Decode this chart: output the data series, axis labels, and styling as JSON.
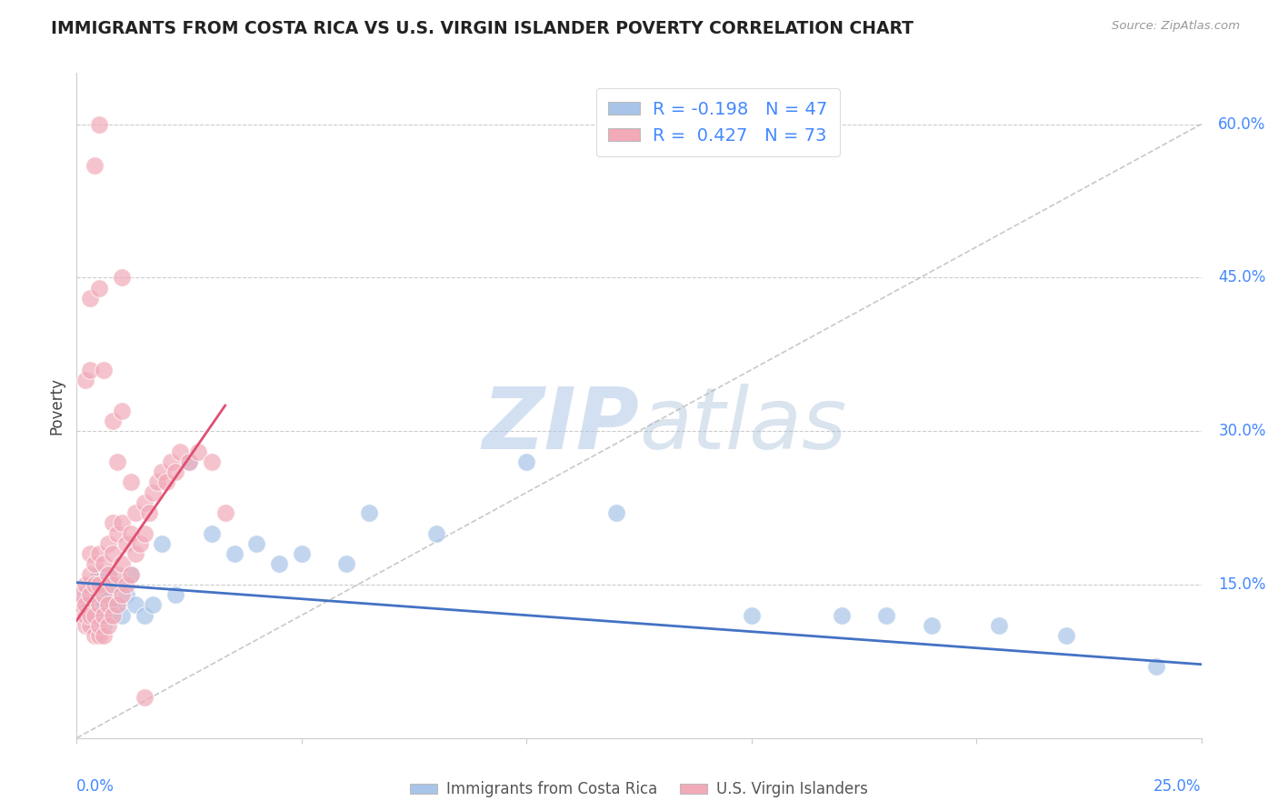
{
  "title": "IMMIGRANTS FROM COSTA RICA VS U.S. VIRGIN ISLANDER POVERTY CORRELATION CHART",
  "source": "Source: ZipAtlas.com",
  "ylabel": "Poverty",
  "legend_r1": "R = -0.198",
  "legend_n1": "N = 47",
  "legend_r2": "R =  0.427",
  "legend_n2": "N = 73",
  "watermark_zip": "ZIP",
  "watermark_atlas": "atlas",
  "blue_color": "#a8c4e8",
  "pink_color": "#f2aab8",
  "trend_blue": "#4472c4",
  "trend_pink": "#e05070",
  "xlim": [
    0.0,
    0.25
  ],
  "ylim": [
    0.0,
    0.65
  ],
  "yticks": [
    0.0,
    0.15,
    0.3,
    0.45,
    0.6
  ],
  "ytick_labels": [
    "",
    "15.0%",
    "30.0%",
    "45.0%",
    "60.0%"
  ],
  "blue_scatter_x": [
    0.001,
    0.002,
    0.002,
    0.003,
    0.003,
    0.004,
    0.004,
    0.004,
    0.005,
    0.005,
    0.005,
    0.006,
    0.006,
    0.006,
    0.007,
    0.007,
    0.007,
    0.008,
    0.008,
    0.009,
    0.01,
    0.01,
    0.011,
    0.012,
    0.013,
    0.015,
    0.017,
    0.019,
    0.022,
    0.025,
    0.03,
    0.035,
    0.04,
    0.045,
    0.05,
    0.06,
    0.065,
    0.08,
    0.1,
    0.12,
    0.15,
    0.17,
    0.18,
    0.19,
    0.205,
    0.22,
    0.24
  ],
  "blue_scatter_y": [
    0.13,
    0.12,
    0.14,
    0.13,
    0.15,
    0.11,
    0.13,
    0.15,
    0.12,
    0.14,
    0.16,
    0.11,
    0.13,
    0.15,
    0.12,
    0.14,
    0.16,
    0.13,
    0.15,
    0.13,
    0.12,
    0.15,
    0.14,
    0.16,
    0.13,
    0.12,
    0.13,
    0.19,
    0.14,
    0.27,
    0.2,
    0.18,
    0.19,
    0.17,
    0.18,
    0.17,
    0.22,
    0.2,
    0.27,
    0.22,
    0.12,
    0.12,
    0.12,
    0.11,
    0.11,
    0.1,
    0.07
  ],
  "pink_scatter_x": [
    0.001,
    0.001,
    0.001,
    0.002,
    0.002,
    0.002,
    0.002,
    0.003,
    0.003,
    0.003,
    0.003,
    0.003,
    0.004,
    0.004,
    0.004,
    0.004,
    0.005,
    0.005,
    0.005,
    0.005,
    0.005,
    0.006,
    0.006,
    0.006,
    0.006,
    0.007,
    0.007,
    0.007,
    0.007,
    0.008,
    0.008,
    0.008,
    0.008,
    0.009,
    0.009,
    0.009,
    0.01,
    0.01,
    0.01,
    0.011,
    0.011,
    0.012,
    0.012,
    0.013,
    0.013,
    0.014,
    0.015,
    0.015,
    0.016,
    0.017,
    0.018,
    0.019,
    0.02,
    0.021,
    0.022,
    0.023,
    0.025,
    0.027,
    0.03,
    0.033,
    0.002,
    0.003,
    0.003,
    0.004,
    0.005,
    0.005,
    0.006,
    0.008,
    0.009,
    0.01,
    0.012,
    0.01,
    0.015
  ],
  "pink_scatter_y": [
    0.12,
    0.13,
    0.14,
    0.11,
    0.12,
    0.13,
    0.15,
    0.11,
    0.12,
    0.14,
    0.16,
    0.18,
    0.1,
    0.12,
    0.15,
    0.17,
    0.1,
    0.11,
    0.13,
    0.15,
    0.18,
    0.1,
    0.12,
    0.14,
    0.17,
    0.11,
    0.13,
    0.16,
    0.19,
    0.12,
    0.15,
    0.18,
    0.21,
    0.13,
    0.16,
    0.2,
    0.14,
    0.17,
    0.21,
    0.15,
    0.19,
    0.16,
    0.2,
    0.18,
    0.22,
    0.19,
    0.2,
    0.23,
    0.22,
    0.24,
    0.25,
    0.26,
    0.25,
    0.27,
    0.26,
    0.28,
    0.27,
    0.28,
    0.27,
    0.22,
    0.35,
    0.43,
    0.36,
    0.56,
    0.6,
    0.44,
    0.36,
    0.31,
    0.27,
    0.32,
    0.25,
    0.45,
    0.04
  ],
  "blue_trend_x": [
    0.0,
    0.25
  ],
  "blue_trend_y": [
    0.152,
    0.072
  ],
  "pink_trend_x": [
    0.0,
    0.033
  ],
  "pink_trend_y": [
    0.115,
    0.325
  ]
}
